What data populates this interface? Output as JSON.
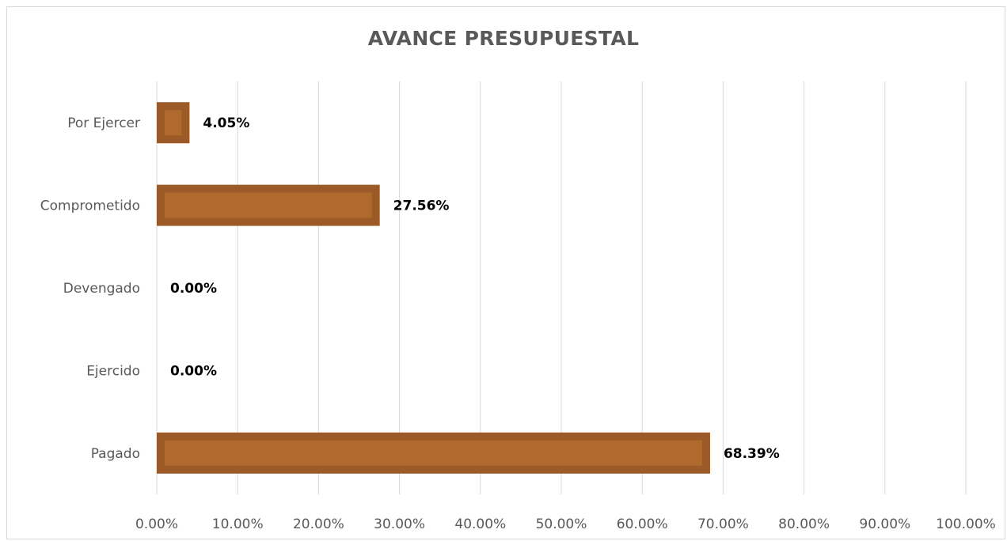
{
  "chart_data": {
    "type": "bar",
    "orientation": "horizontal",
    "title": "AVANCE PRESUPUESTAL",
    "categories": [
      "Por Ejercer",
      "Comprometido",
      "Devengado",
      "Ejercido",
      "Pagado"
    ],
    "values": [
      4.05,
      27.56,
      0.0,
      0.0,
      68.39
    ],
    "data_labels": [
      "4.05%",
      "27.56%",
      "0.00%",
      "0.00%",
      "68.39%"
    ],
    "x_ticks": [
      "0.00%",
      "10.00%",
      "20.00%",
      "30.00%",
      "40.00%",
      "50.00%",
      "60.00%",
      "70.00%",
      "80.00%",
      "90.00%",
      "100.00%"
    ],
    "xlim": [
      0,
      100
    ],
    "grid": true,
    "legend": "none",
    "colors": {
      "bar_fill": "#b06a2e",
      "bar_border": "#9c5a28",
      "grid": "#d9d9d9",
      "text": "#595959"
    }
  }
}
